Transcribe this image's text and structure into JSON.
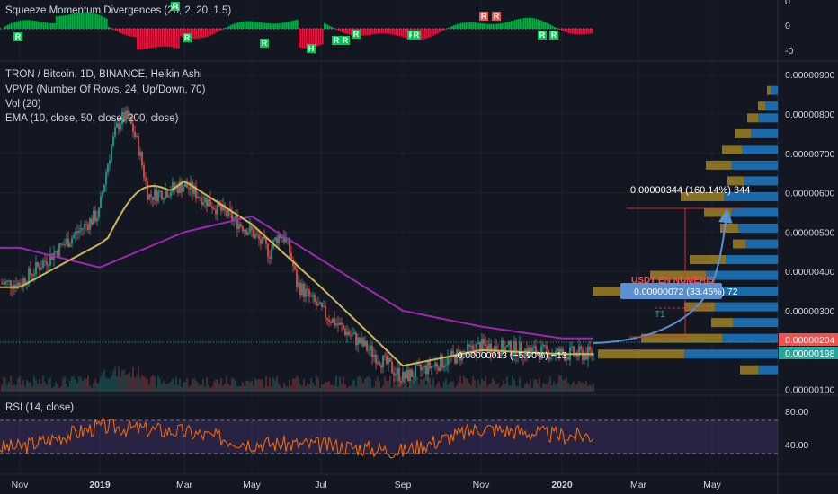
{
  "chart_title": "TRON / Bitcoin, 1D, BINANCE, Heikin Ashi",
  "indicators": {
    "vpvr": "VPVR (Number Of Rows, 24, Up/Down, 70)",
    "vol": "Vol (20)",
    "ema": "EMA (10, close, 50, close, 200, close)",
    "squeeze": "Squeeze Momentum Divergences (20, 2, 20, 1.5)",
    "rsi": "RSI (14, close)"
  },
  "colors": {
    "background": "#131722",
    "up": "#26a69a",
    "down": "#ef5350",
    "ema50": "#c9b458",
    "ema200": "#9c27b0",
    "rsi": "#ff6d00",
    "rsi_band": "#7e57c2",
    "vpvr_up": "#2196f3",
    "vpvr_down": "#c9a227",
    "projection": "#5a8fd0"
  },
  "price_axis": [
    "0.00000900",
    "0.00000800",
    "0.00000700",
    "0.00000600",
    "0.00000500",
    "0.00000400",
    "0.00000300",
    "0.00000100"
  ],
  "current_price": "0.00000204",
  "ema_price": "0.00000198",
  "squeeze_axis": [
    "0",
    "0",
    "-0"
  ],
  "rsi_axis": [
    "80.00",
    "40.00"
  ],
  "time_axis": [
    "Nov",
    "2019",
    "Mar",
    "May",
    "Jul",
    "Sep",
    "Nov",
    "2020",
    "Mar",
    "May"
  ],
  "annotations": {
    "target_measure": "0.00000344 (160.14%) 344",
    "t1_measure": "0.00000072 (33.45%) 72",
    "drop_measure": "-0.00000013 (−5.90%) −13",
    "t1_label": "T1",
    "zone_label": "USDT EN NUMERIS"
  },
  "squeeze_signals": [
    "R",
    "R",
    "R",
    "H",
    "R",
    "R",
    "R",
    "R",
    "R",
    "R",
    "R",
    "R",
    "R",
    "R"
  ],
  "chart_data": {
    "type": "line",
    "title": "TRON / Bitcoin, 1D, BINANCE, Heikin Ashi",
    "x": [
      "Nov 2018",
      "2019",
      "Mar 2019",
      "May 2019",
      "Jul 2019",
      "Sep 2019",
      "Nov 2019",
      "2020",
      "Mar 2020",
      "May 2020"
    ],
    "ylim": [
      9e-07,
      9.3e-06
    ],
    "series": [
      {
        "name": "Close",
        "values": [
          3.7e-06,
          5.5e-06,
          6.2e-06,
          5e-06,
          3e-06,
          1.3e-06,
          2.1e-06,
          1.9e-06,
          null,
          null
        ]
      },
      {
        "name": "EMA 50",
        "values": [
          3.6e-06,
          4.7e-06,
          6.3e-06,
          5.2e-06,
          3.6e-06,
          1.6e-06,
          2e-06,
          1.9e-06,
          null,
          null
        ]
      },
      {
        "name": "EMA 200",
        "values": [
          4.6e-06,
          4.1e-06,
          5e-06,
          5.4e-06,
          4.3e-06,
          3e-06,
          2.6e-06,
          2.3e-06,
          null,
          null
        ]
      }
    ],
    "rsi": {
      "ylim": [
        0,
        100
      ],
      "bands": [
        70,
        30
      ],
      "values": [
        35,
        62,
        55,
        40,
        38,
        30,
        60,
        50,
        null,
        null
      ]
    }
  }
}
